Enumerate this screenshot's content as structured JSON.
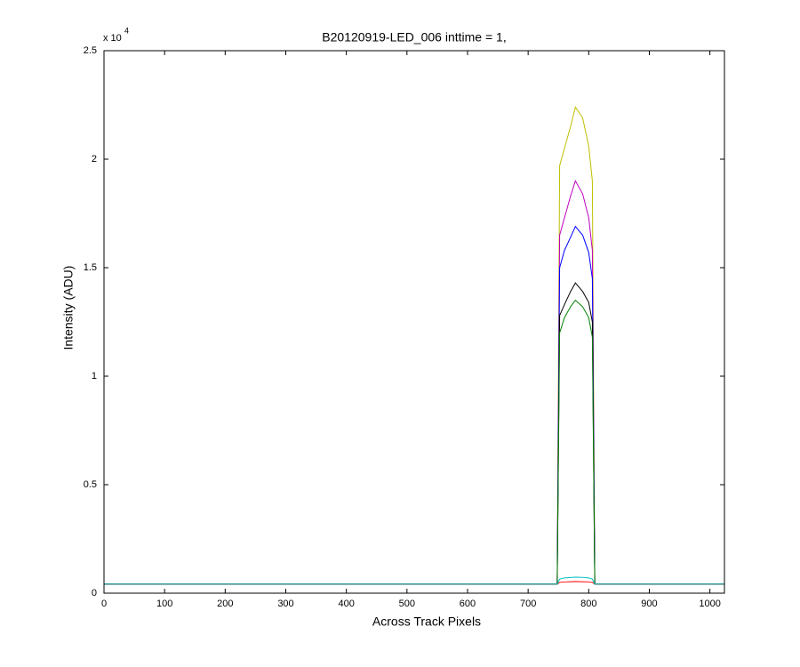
{
  "chart_data": {
    "type": "line",
    "title": "B20120919-LED_006 inttime = 1,",
    "x_label": "Across Track Pixels",
    "y_label": "Intensity (ADU)",
    "y_exponent_label": "x 10",
    "y_exponent": "4",
    "x": [
      0,
      745,
      748,
      752,
      760,
      770,
      778,
      790,
      800,
      806,
      810,
      1024
    ],
    "series": [
      {
        "color": "#bfbf00",
        "values": [
          420,
          420,
          420,
          19700,
          20500,
          21500,
          22400,
          21900,
          20600,
          19000,
          420,
          420
        ]
      },
      {
        "color": "#bf00bf",
        "values": [
          420,
          420,
          420,
          16500,
          17300,
          18300,
          19000,
          18400,
          17300,
          15800,
          420,
          420
        ]
      },
      {
        "color": "#0000ff",
        "values": [
          420,
          420,
          420,
          15000,
          15800,
          16400,
          16900,
          16500,
          15700,
          14500,
          420,
          420
        ]
      },
      {
        "color": "#000000",
        "values": [
          420,
          420,
          420,
          12800,
          13300,
          13900,
          14300,
          13900,
          13400,
          12500,
          420,
          420
        ]
      },
      {
        "color": "#008000",
        "values": [
          420,
          420,
          420,
          12000,
          12700,
          13200,
          13500,
          13200,
          12700,
          11800,
          420,
          420
        ]
      },
      {
        "color": "#ff0000",
        "values": [
          420,
          420,
          420,
          500,
          520,
          530,
          540,
          530,
          520,
          500,
          420,
          420
        ]
      },
      {
        "color": "#00bfbf",
        "values": [
          420,
          420,
          420,
          650,
          700,
          720,
          740,
          730,
          700,
          650,
          420,
          420
        ]
      }
    ],
    "xlim": [
      0,
      1024
    ],
    "xticks": [
      0,
      100,
      200,
      300,
      400,
      500,
      600,
      700,
      800,
      900,
      1000
    ],
    "ylim": [
      0,
      25000
    ],
    "yticks": [
      0,
      {
        "value": 5000,
        "label": "0.5"
      },
      {
        "value": 10000,
        "label": "1"
      },
      {
        "value": 15000,
        "label": "1.5"
      },
      {
        "value": 20000,
        "label": "2"
      },
      {
        "value": 25000,
        "label": "2.5"
      }
    ],
    "grid": false
  }
}
